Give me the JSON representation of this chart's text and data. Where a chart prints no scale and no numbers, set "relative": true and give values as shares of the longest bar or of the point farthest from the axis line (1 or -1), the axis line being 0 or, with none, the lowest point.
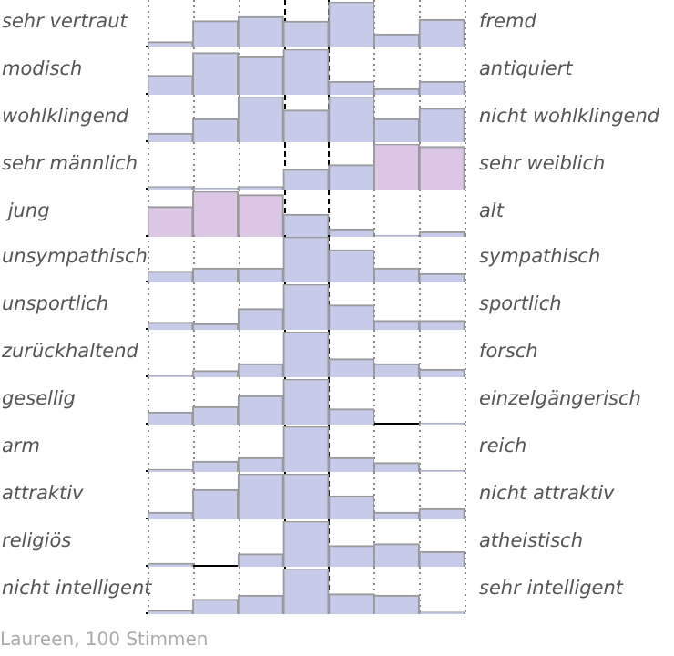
{
  "chart_data": [
    {
      "type": "bar",
      "relative": true,
      "grid": "x",
      "ylabel": "sehr vertraut",
      "y2label": "fremd",
      "categories": [
        null,
        null,
        null,
        null,
        null,
        null,
        null
      ],
      "color": "#c5cbe9",
      "values": [
        0.12,
        0.58,
        0.67,
        0.57,
        1,
        0.29,
        0.61
      ]
    },
    {
      "type": "bar",
      "relative": true,
      "grid": "x",
      "ylabel": "modisch",
      "y2label": "antiquiert",
      "categories": [
        null,
        null,
        null,
        null,
        null,
        null,
        null
      ],
      "color": "#c5cbe9",
      "values": [
        0.42,
        0.92,
        0.83,
        1,
        0.29,
        0.13,
        0.29
      ]
    },
    {
      "type": "bar",
      "relative": true,
      "grid": "x",
      "ylabel": "wohlklingend",
      "y2label": "nicht wohlklingend",
      "categories": [
        null,
        null,
        null,
        null,
        null,
        null,
        null
      ],
      "color": "#c5cbe9",
      "values": [
        0.19,
        0.51,
        1,
        0.7,
        1,
        0.51,
        0.74
      ]
    },
    {
      "type": "bar",
      "relative": true,
      "grid": "x",
      "ylabel": "sehr männlich",
      "y2label": "sehr weiblich",
      "categories": [
        null,
        null,
        null,
        null,
        null,
        null,
        null
      ],
      "colors": [
        "#c5cbe9",
        "#c5cbe9",
        "#c5cbe9",
        "#c5cbe9",
        "#c5cbe9",
        "#dcc6e6",
        "#dcc6e6"
      ],
      "values": [
        0.06,
        0.03,
        0.06,
        0.44,
        0.54,
        1,
        0.94
      ]
    },
    {
      "type": "bar",
      "relative": true,
      "grid": "x",
      "ylabel": " jung",
      "y2label": "alt",
      "categories": [
        null,
        null,
        null,
        null,
        null,
        null,
        null
      ],
      "colors": [
        "#dcc6e6",
        "#dcc6e6",
        "#dcc6e6",
        "#c5cbe9",
        "#c5cbe9",
        "#c5cbe9",
        "#c5cbe9"
      ],
      "values": [
        0.66,
        1,
        0.92,
        0.49,
        0.17,
        0.03,
        0.11
      ]
    },
    {
      "type": "bar",
      "relative": true,
      "grid": "x",
      "ylabel": "unsympathisch",
      "y2label": "sympathisch",
      "categories": [
        null,
        null,
        null,
        null,
        null,
        null,
        null
      ],
      "color": "#c5cbe9",
      "values": [
        0.24,
        0.31,
        0.31,
        1,
        0.71,
        0.31,
        0.19
      ]
    },
    {
      "type": "bar",
      "relative": true,
      "grid": "x",
      "ylabel": "unsportlich",
      "y2label": "sportlich",
      "categories": [
        null,
        null,
        null,
        null,
        null,
        null,
        null
      ],
      "color": "#c5cbe9",
      "values": [
        0.16,
        0.13,
        0.46,
        1,
        0.54,
        0.2,
        0.2
      ]
    },
    {
      "type": "bar",
      "relative": true,
      "grid": "x",
      "ylabel": "zurückhaltend",
      "y2label": "forsch",
      "categories": [
        null,
        null,
        null,
        null,
        null,
        null,
        null
      ],
      "color": "#c5cbe9",
      "values": [
        0.03,
        0.14,
        0.29,
        1,
        0.4,
        0.29,
        0.17
      ]
    },
    {
      "type": "bar",
      "relative": true,
      "grid": "x",
      "ylabel": "gesellig",
      "y2label": "einzelgängerisch",
      "categories": [
        null,
        null,
        null,
        null,
        null,
        null,
        null
      ],
      "color": "#c5cbe9",
      "values": [
        0.27,
        0.39,
        0.63,
        1,
        0.34,
        0,
        0.03
      ]
    },
    {
      "type": "bar",
      "relative": true,
      "grid": "x",
      "ylabel": "arm",
      "y2label": "reich",
      "categories": [
        null,
        null,
        null,
        null,
        null,
        null,
        null
      ],
      "color": "#c5cbe9",
      "values": [
        0.05,
        0.23,
        0.31,
        1,
        0.31,
        0.2,
        0.03
      ]
    },
    {
      "type": "bar",
      "relative": true,
      "grid": "x",
      "ylabel": "attraktiv",
      "y2label": "nicht attraktiv",
      "categories": [
        null,
        null,
        null,
        null,
        null,
        null,
        null
      ],
      "color": "#c5cbe9",
      "values": [
        0.15,
        0.65,
        1,
        1,
        0.51,
        0.15,
        0.23
      ]
    },
    {
      "type": "bar",
      "relative": true,
      "grid": "x",
      "ylabel": "religiös",
      "y2label": "atheistisch",
      "categories": [
        null,
        null,
        null,
        null,
        null,
        null,
        null
      ],
      "color": "#c5cbe9",
      "values": [
        0.07,
        0,
        0.28,
        1,
        0.46,
        0.5,
        0.33
      ]
    },
    {
      "type": "bar",
      "relative": true,
      "grid": "x",
      "ylabel": "nicht intelligent",
      "y2label": "sehr intelligent",
      "categories": [
        null,
        null,
        null,
        null,
        null,
        null,
        null
      ],
      "color": "#c5cbe9",
      "values": [
        0.08,
        0.32,
        0.41,
        1,
        0.44,
        0.41,
        0.04
      ],
      "annotations": [
        "Laureen, 100 Stimmen"
      ]
    }
  ]
}
